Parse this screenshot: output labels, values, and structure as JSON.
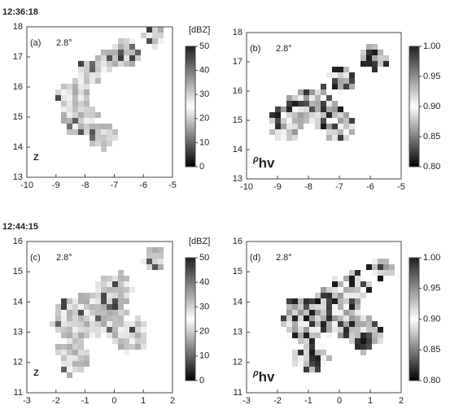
{
  "chart_data": [
    {
      "type": "heatmap",
      "time": "12:36:18",
      "panel_label": "(a)",
      "elevation": "2.8°",
      "variable": "Z",
      "xlim": [
        -10,
        -5
      ],
      "xticks": [
        -10,
        -9,
        -8,
        -7,
        -6,
        -5
      ],
      "ylim": [
        13,
        18
      ],
      "yticks": [
        13,
        14,
        15,
        16,
        17,
        18
      ],
      "colorbar": {
        "label": "[dBZ]",
        "lim": [
          0,
          50
        ],
        "ticks": [
          0,
          10,
          20,
          30,
          40,
          50
        ],
        "colors": [
          "#000000",
          "#ffffff",
          "#202020"
        ]
      }
    },
    {
      "type": "heatmap",
      "panel_label": "(b)",
      "elevation": "2.8°",
      "variable": "ρ",
      "variable_subscript": "hv",
      "xlim": [
        -10,
        -5
      ],
      "xticks": [
        -10,
        -9,
        -8,
        -7,
        -6,
        -5
      ],
      "ylim": [
        13,
        18
      ],
      "yticks": [
        13,
        14,
        15,
        16,
        17,
        18
      ],
      "colorbar": {
        "lim": [
          0.8,
          1
        ],
        "ticks": [
          {
            "value": 0.8,
            "label": "0.80"
          },
          0.85,
          {
            "value": 0.9,
            "label": "0.90"
          },
          0.95,
          {
            "value": 1,
            "label": "1.00"
          }
        ],
        "colors": [
          "#000000",
          "#ffffff",
          "#202020"
        ]
      }
    },
    {
      "type": "heatmap",
      "time": "12:44:15",
      "panel_label": "(c)",
      "elevation": "2.8°",
      "variable": "Z",
      "xlim": [
        -3,
        2
      ],
      "xticks": [
        -3,
        -2,
        -1,
        0,
        1,
        2
      ],
      "ylim": [
        11,
        16
      ],
      "yticks": [
        11,
        12,
        13,
        14,
        15,
        16
      ],
      "colorbar": {
        "label": "[dBZ]",
        "lim": [
          0,
          50
        ],
        "ticks": [
          0,
          10,
          20,
          30,
          40,
          50
        ],
        "colors": [
          "#000000",
          "#ffffff",
          "#202020"
        ]
      }
    },
    {
      "type": "heatmap",
      "panel_label": "(d)",
      "elevation": "2.8°",
      "variable": "ρ",
      "variable_subscript": "hv",
      "xlim": [
        -3,
        2
      ],
      "xticks": [
        -3,
        -2,
        -1,
        0,
        1,
        2
      ],
      "ylim": [
        11,
        16
      ],
      "yticks": [
        11,
        12,
        13,
        14,
        15,
        16
      ],
      "colorbar": {
        "lim": [
          0.8,
          1
        ],
        "ticks": [
          {
            "value": 0.8,
            "label": "0.80"
          },
          0.85,
          {
            "value": 0.9,
            "label": "0.90"
          },
          0.95,
          {
            "value": 1,
            "label": "1.00"
          }
        ],
        "colors": [
          "#000000",
          "#ffffff",
          "#202020"
        ]
      }
    }
  ]
}
